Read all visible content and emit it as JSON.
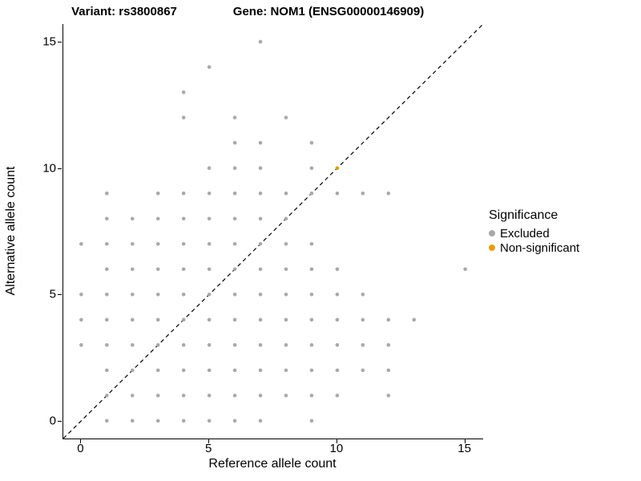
{
  "figure": {
    "title_left": "Variant: rs3800867",
    "title_right": "Gene: NOM1 (ENSG00000146909)"
  },
  "chart_data": {
    "type": "scatter",
    "title_left": "Variant: rs3800867",
    "title_right": "Gene: NOM1 (ENSG00000146909)",
    "xlabel": "Reference allele count",
    "ylabel": "Alternative allele count",
    "xlim": [
      -0.7,
      15.7
    ],
    "ylim": [
      -0.7,
      15.7
    ],
    "xticks": [
      0,
      5,
      10,
      15
    ],
    "yticks": [
      0,
      5,
      10,
      15
    ],
    "grid": false,
    "diagonal_line": {
      "style": "dashed",
      "from": [
        -0.7,
        -0.7
      ],
      "to": [
        15.7,
        15.7
      ],
      "color": "#000000"
    },
    "point_color_excluded": "#A9A9A9",
    "point_color_nonsignificant": "#E69F00",
    "legend": {
      "title": "Significance",
      "position": "right",
      "items": [
        {
          "label": "Excluded",
          "color": "#A9A9A9"
        },
        {
          "label": "Non-significant",
          "color": "#E69F00"
        }
      ]
    },
    "series": [
      {
        "name": "Excluded",
        "color": "#A9A9A9",
        "points": [
          [
            1,
            0
          ],
          [
            2,
            0
          ],
          [
            3,
            0
          ],
          [
            4,
            0
          ],
          [
            5,
            0
          ],
          [
            6,
            0
          ],
          [
            7,
            0
          ],
          [
            9,
            0
          ],
          [
            1,
            1
          ],
          [
            2,
            1
          ],
          [
            3,
            1
          ],
          [
            4,
            1
          ],
          [
            5,
            1
          ],
          [
            6,
            1
          ],
          [
            7,
            1
          ],
          [
            8,
            1
          ],
          [
            9,
            1
          ],
          [
            10,
            1
          ],
          [
            12,
            1
          ],
          [
            1,
            2
          ],
          [
            2,
            2
          ],
          [
            3,
            2
          ],
          [
            4,
            2
          ],
          [
            5,
            2
          ],
          [
            6,
            2
          ],
          [
            7,
            2
          ],
          [
            8,
            2
          ],
          [
            9,
            2
          ],
          [
            10,
            2
          ],
          [
            11,
            2
          ],
          [
            12,
            2
          ],
          [
            0,
            3
          ],
          [
            1,
            3
          ],
          [
            2,
            3
          ],
          [
            3,
            3
          ],
          [
            4,
            3
          ],
          [
            5,
            3
          ],
          [
            6,
            3
          ],
          [
            7,
            3
          ],
          [
            8,
            3
          ],
          [
            9,
            3
          ],
          [
            10,
            3
          ],
          [
            11,
            3
          ],
          [
            12,
            3
          ],
          [
            0,
            4
          ],
          [
            1,
            4
          ],
          [
            2,
            4
          ],
          [
            3,
            4
          ],
          [
            4,
            4
          ],
          [
            5,
            4
          ],
          [
            6,
            4
          ],
          [
            7,
            4
          ],
          [
            8,
            4
          ],
          [
            9,
            4
          ],
          [
            10,
            4
          ],
          [
            11,
            4
          ],
          [
            12,
            4
          ],
          [
            13,
            4
          ],
          [
            0,
            5
          ],
          [
            1,
            5
          ],
          [
            2,
            5
          ],
          [
            3,
            5
          ],
          [
            4,
            5
          ],
          [
            5,
            5
          ],
          [
            6,
            5
          ],
          [
            7,
            5
          ],
          [
            8,
            5
          ],
          [
            9,
            5
          ],
          [
            10,
            5
          ],
          [
            11,
            5
          ],
          [
            1,
            6
          ],
          [
            2,
            6
          ],
          [
            3,
            6
          ],
          [
            4,
            6
          ],
          [
            5,
            6
          ],
          [
            6,
            6
          ],
          [
            7,
            6
          ],
          [
            8,
            6
          ],
          [
            9,
            6
          ],
          [
            10,
            6
          ],
          [
            15,
            6
          ],
          [
            0,
            7
          ],
          [
            1,
            7
          ],
          [
            2,
            7
          ],
          [
            3,
            7
          ],
          [
            4,
            7
          ],
          [
            5,
            7
          ],
          [
            6,
            7
          ],
          [
            7,
            7
          ],
          [
            8,
            7
          ],
          [
            9,
            7
          ],
          [
            1,
            8
          ],
          [
            2,
            8
          ],
          [
            3,
            8
          ],
          [
            4,
            8
          ],
          [
            5,
            8
          ],
          [
            6,
            8
          ],
          [
            7,
            8
          ],
          [
            8,
            8
          ],
          [
            1,
            9
          ],
          [
            3,
            9
          ],
          [
            4,
            9
          ],
          [
            5,
            9
          ],
          [
            6,
            9
          ],
          [
            7,
            9
          ],
          [
            8,
            9
          ],
          [
            9,
            9
          ],
          [
            10,
            9
          ],
          [
            11,
            9
          ],
          [
            12,
            9
          ],
          [
            5,
            10
          ],
          [
            6,
            10
          ],
          [
            7,
            10
          ],
          [
            9,
            10
          ],
          [
            6,
            11
          ],
          [
            7,
            11
          ],
          [
            9,
            11
          ],
          [
            4,
            12
          ],
          [
            6,
            12
          ],
          [
            8,
            12
          ],
          [
            4,
            13
          ],
          [
            5,
            14
          ],
          [
            7,
            15
          ]
        ]
      },
      {
        "name": "Non-significant",
        "color": "#E69F00",
        "points": [
          [
            10,
            10
          ]
        ]
      }
    ]
  }
}
